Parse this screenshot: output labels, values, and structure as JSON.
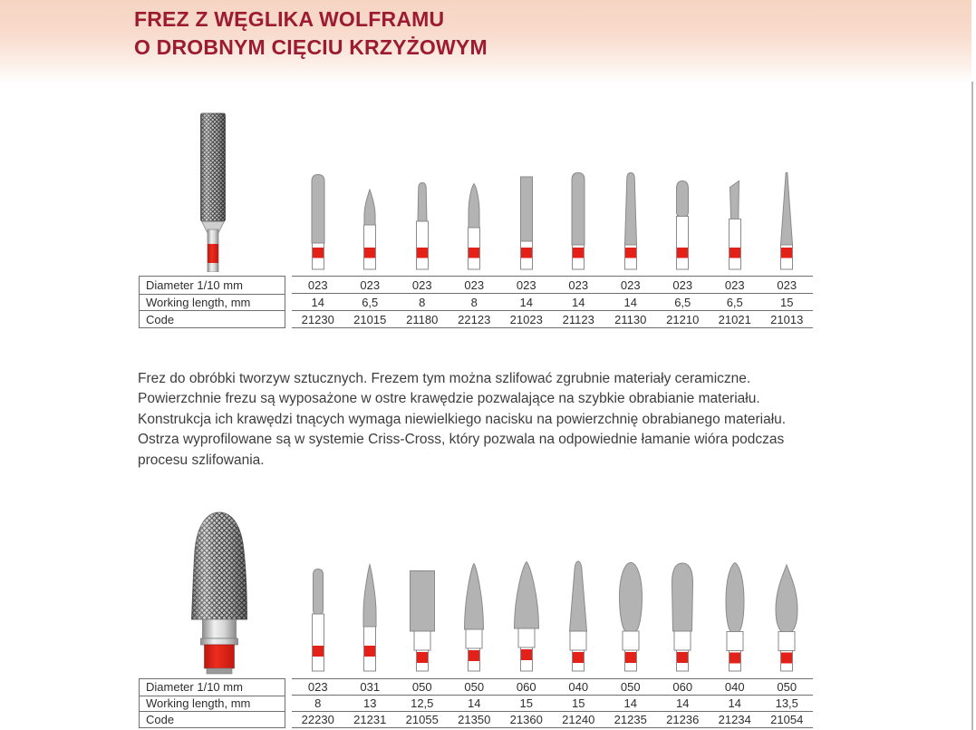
{
  "header": {
    "title_line1": "FREZ Z WĘGLIKA WOLFRAMU",
    "title_line2": "O DROBNYM CIĘCIU KRZYŻOWYM"
  },
  "description_lines": [
    "Frez do obróbki tworzyw sztucznych. Frezem tym można szlifować zgrubnie materiały ceramiczne.",
    "Powierzchnie frezu są wyposażone w ostre krawędzie pozwalające na szybkie obrabianie materiału.",
    "Konstrukcja ich krawędzi tnących wymaga niewielkiego nacisku na powierzchnię obrabianego materiału.",
    "Ostrza wyprofilowane są w systemie Criss-Cross, który pozwala na odpowiednie łamanie wióra podczas",
    "procesu szlifowania."
  ],
  "row_labels": [
    "Diameter 1/10 mm",
    "Working length, mm",
    "Code"
  ],
  "sections": [
    {
      "name": "top",
      "products": [
        {
          "shape": "cylinder-round-top-icon",
          "diameter": "023",
          "working_length": "14",
          "code": "21230"
        },
        {
          "shape": "pointed-bud-icon",
          "diameter": "023",
          "working_length": "6,5",
          "code": "21015"
        },
        {
          "shape": "slim-round-taper-icon",
          "diameter": "023",
          "working_length": "8",
          "code": "21180"
        },
        {
          "shape": "flame-icon",
          "diameter": "023",
          "working_length": "8",
          "code": "22123"
        },
        {
          "shape": "cylinder-flat-top-icon",
          "diameter": "023",
          "working_length": "14",
          "code": "21023"
        },
        {
          "shape": "cylinder-dome-top-icon",
          "diameter": "023",
          "working_length": "14",
          "code": "21123"
        },
        {
          "shape": "taper-round-top-icon",
          "diameter": "023",
          "working_length": "14",
          "code": "21130"
        },
        {
          "shape": "capsule-icon",
          "diameter": "023",
          "working_length": "6,5",
          "code": "21210"
        },
        {
          "shape": "chisel-icon",
          "diameter": "023",
          "working_length": "6,5",
          "code": "21021"
        },
        {
          "shape": "needle-icon",
          "diameter": "023",
          "working_length": "15",
          "code": "21013"
        }
      ]
    },
    {
      "name": "bottom",
      "products": [
        {
          "shape": "small-capsule-icon",
          "diameter": "023",
          "working_length": "8",
          "code": "22230"
        },
        {
          "shape": "slim-cone-round-tip-icon",
          "diameter": "031",
          "working_length": "13",
          "code": "21231"
        },
        {
          "shape": "wide-cylinder-flat-icon",
          "diameter": "050",
          "working_length": "12,5",
          "code": "21055"
        },
        {
          "shape": "cone-round-top-icon",
          "diameter": "050",
          "working_length": "14",
          "code": "21350"
        },
        {
          "shape": "wide-cone-round-top-icon",
          "diameter": "060",
          "working_length": "15",
          "code": "21360"
        },
        {
          "shape": "tall-narrow-cone-icon",
          "diameter": "040",
          "working_length": "15",
          "code": "21240"
        },
        {
          "shape": "egg-icon",
          "diameter": "050",
          "working_length": "14",
          "code": "21235"
        },
        {
          "shape": "bullet-icon",
          "diameter": "060",
          "working_length": "14",
          "code": "21236"
        },
        {
          "shape": "bud-icon",
          "diameter": "040",
          "working_length": "14",
          "code": "21234"
        },
        {
          "shape": "pointed-flame-icon",
          "diameter": "050",
          "working_length": "13,5",
          "code": "21054"
        }
      ]
    }
  ],
  "colors": {
    "title_maroon": "#9c1b31",
    "band_pink": "#f6d4c2",
    "accent_red": "#e32119",
    "bur_gray": "#b3b3b3",
    "outline_gray": "#8a8a8a",
    "table_line": "#6f6f6f",
    "text_dark": "#2e2e2e"
  }
}
